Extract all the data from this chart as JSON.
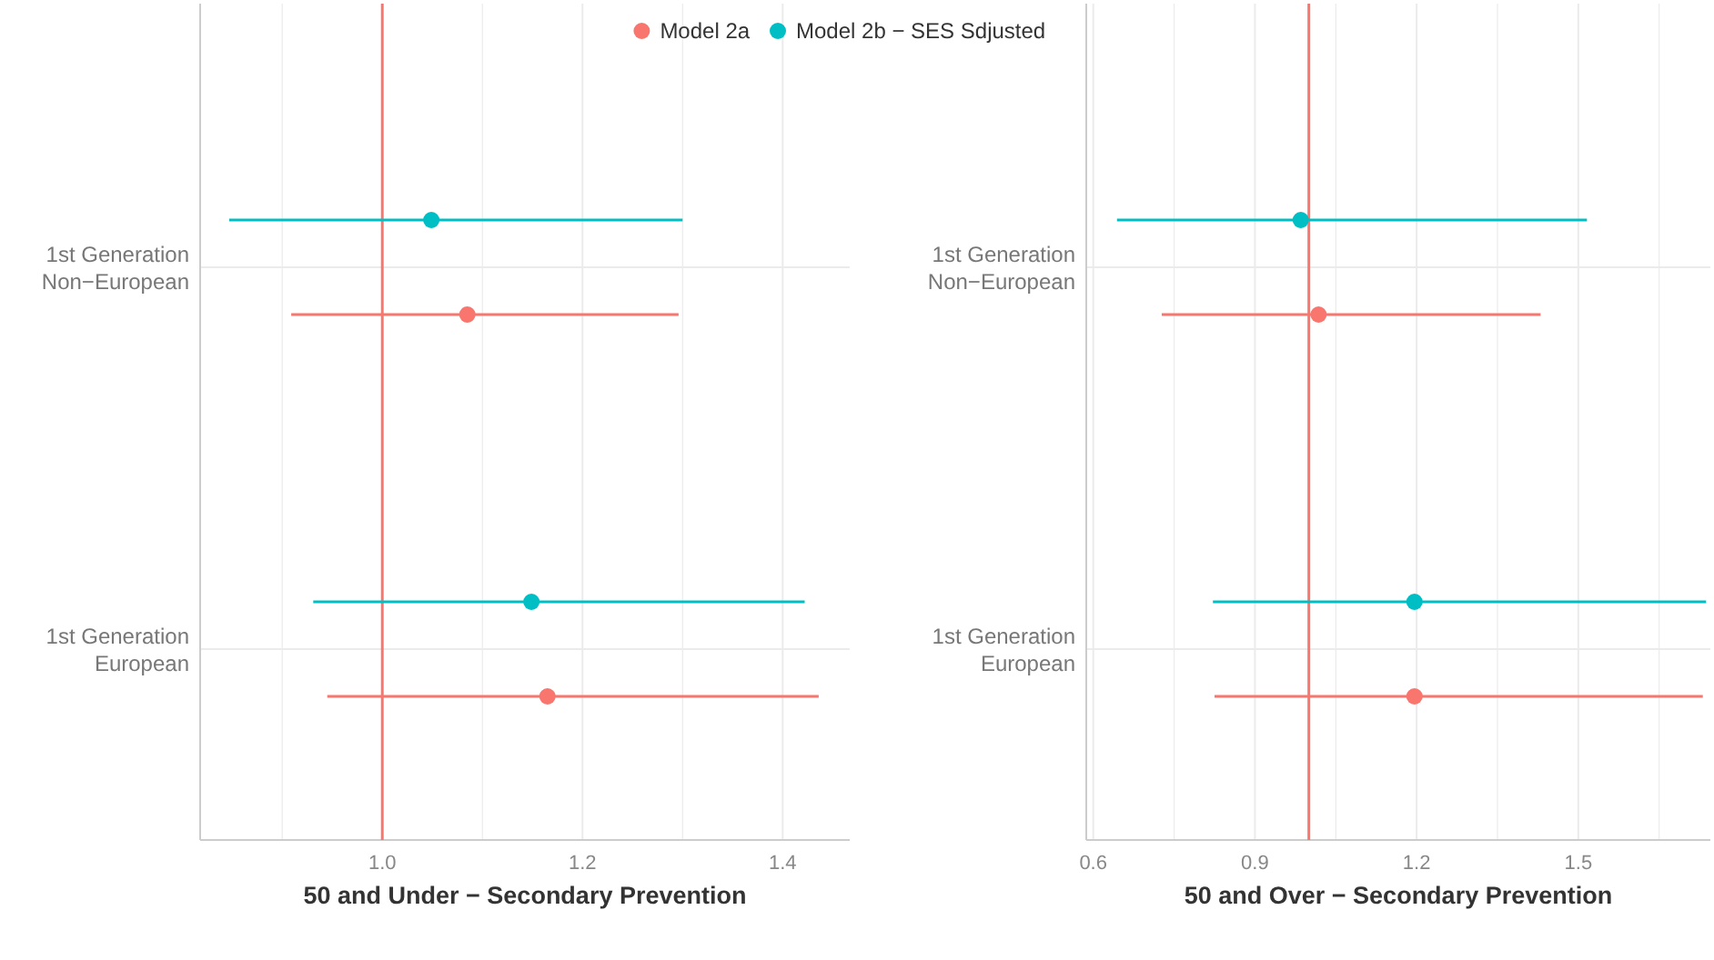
{
  "chart_data": [
    {
      "type": "scatter",
      "orientation": "horizontal",
      "xlabel": "50 and Under − Secondary Prevention",
      "categories": [
        "1st Generation\nNon−European",
        "1st Generation\nEuropean"
      ],
      "xlim": [
        0.818,
        1.467
      ],
      "xticks": [
        {
          "value": 0.9,
          "label": null
        },
        {
          "value": 1.0,
          "label": "1.0"
        },
        {
          "value": 1.1,
          "label": null
        },
        1.2,
        {
          "value": 1.3,
          "label": null
        },
        1.4
      ],
      "grid": true,
      "legend": "top",
      "marker": "circle",
      "ref_lines": [
        {
          "axis": "x",
          "value": 1.0,
          "color": "#f8766d"
        }
      ],
      "series": [
        {
          "name": "Model 2a",
          "color": "#f8766d",
          "values": [
            1.085,
            1.165
          ],
          "errors": [
            [
              0.909,
              1.296
            ],
            [
              0.945,
              1.436
            ]
          ]
        },
        {
          "name": "Model 2b − SES Sdjusted",
          "color": "#00bfc4",
          "values": [
            1.049,
            1.149
          ],
          "errors": [
            [
              0.847,
              1.3
            ],
            [
              0.931,
              1.422
            ]
          ]
        }
      ]
    },
    {
      "type": "scatter",
      "orientation": "horizontal",
      "xlabel": "50 and Over − Secondary Prevention",
      "categories": [
        "1st Generation\nNon−European",
        "1st Generation\nEuropean"
      ],
      "xlim": [
        0.587,
        1.745
      ],
      "xticks": [
        0.6,
        {
          "value": 0.75,
          "label": null
        },
        0.9,
        {
          "value": 1.05,
          "label": null
        },
        1.2,
        {
          "value": 1.35,
          "label": null
        },
        1.5,
        {
          "value": 1.65,
          "label": null
        }
      ],
      "grid": true,
      "marker": "circle",
      "ref_lines": [
        {
          "axis": "x",
          "value": 1.0,
          "color": "#f8766d"
        }
      ],
      "series": [
        {
          "color": "#f8766d",
          "values": [
            1.018,
            1.196
          ],
          "errors": [
            [
              0.727,
              1.43
            ],
            [
              0.825,
              1.731
            ]
          ]
        },
        {
          "color": "#00bfc4",
          "values": [
            0.985,
            1.196
          ],
          "errors": [
            [
              0.644,
              1.516
            ],
            [
              0.822,
              1.737
            ]
          ]
        }
      ]
    }
  ]
}
